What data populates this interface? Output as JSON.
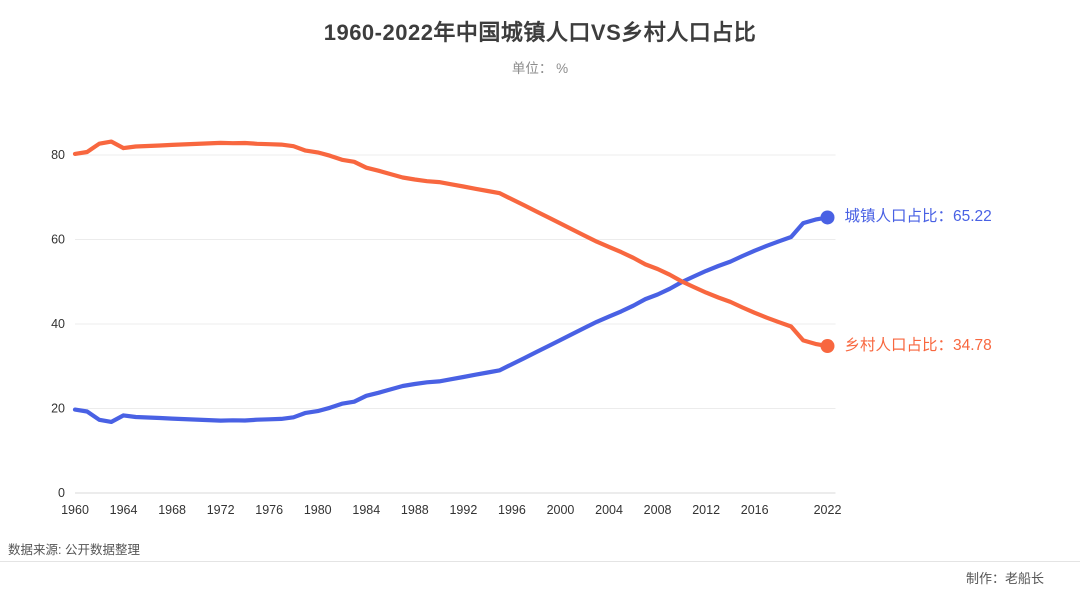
{
  "footer": {
    "source": "数据来源: 公开数据整理",
    "credit": "制作：老船长"
  },
  "chart_data": {
    "type": "line",
    "title": "1960-2022年中国城镇人口VS乡村人口占比",
    "subtitle": "单位： %",
    "xlabel": "",
    "ylabel": "",
    "ylim": [
      0,
      80
    ],
    "yticks": [
      0,
      20,
      40,
      60,
      80
    ],
    "xticks": [
      1960,
      1964,
      1968,
      1972,
      1976,
      1980,
      1984,
      1988,
      1992,
      1996,
      2000,
      2004,
      2008,
      2012,
      2016,
      2022
    ],
    "grid": "horizontal",
    "legend_position": "line-end-labels",
    "x": [
      1960,
      1961,
      1962,
      1963,
      1964,
      1965,
      1966,
      1967,
      1968,
      1969,
      1970,
      1971,
      1972,
      1973,
      1974,
      1975,
      1976,
      1977,
      1978,
      1979,
      1980,
      1981,
      1982,
      1983,
      1984,
      1985,
      1986,
      1987,
      1988,
      1989,
      1990,
      1991,
      1992,
      1993,
      1994,
      1995,
      1996,
      1997,
      1998,
      1999,
      2000,
      2001,
      2002,
      2003,
      2004,
      2005,
      2006,
      2007,
      2008,
      2009,
      2010,
      2011,
      2012,
      2013,
      2014,
      2015,
      2016,
      2017,
      2018,
      2019,
      2020,
      2021,
      2022
    ],
    "series": [
      {
        "name": "城镇人口占比",
        "color": "#4961e4",
        "end_value": 65.22,
        "end_label": "城镇人口占比：65.22",
        "values": [
          19.75,
          19.29,
          17.33,
          16.84,
          18.37,
          17.98,
          17.86,
          17.74,
          17.62,
          17.5,
          17.38,
          17.26,
          17.13,
          17.2,
          17.16,
          17.34,
          17.44,
          17.55,
          17.92,
          18.96,
          19.39,
          20.16,
          21.13,
          21.62,
          23.01,
          23.71,
          24.52,
          25.32,
          25.81,
          26.21,
          26.41,
          26.94,
          27.46,
          27.99,
          28.51,
          29.04,
          30.48,
          31.91,
          33.35,
          34.78,
          36.22,
          37.66,
          39.09,
          40.53,
          41.76,
          42.99,
          44.34,
          45.89,
          46.99,
          48.34,
          49.95,
          51.27,
          52.57,
          53.73,
          54.77,
          56.1,
          57.35,
          58.52,
          59.58,
          60.6,
          63.89,
          64.72,
          65.22
        ]
      },
      {
        "name": "乡村人口占比",
        "color": "#f8673f",
        "end_value": 34.78,
        "end_label": "乡村人口占比：34.78",
        "values": [
          80.25,
          80.71,
          82.67,
          83.16,
          81.63,
          82.02,
          82.14,
          82.26,
          82.38,
          82.5,
          82.62,
          82.74,
          82.87,
          82.8,
          82.84,
          82.66,
          82.56,
          82.45,
          82.08,
          81.04,
          80.61,
          79.84,
          78.87,
          78.38,
          76.99,
          76.29,
          75.48,
          74.68,
          74.19,
          73.79,
          73.59,
          73.06,
          72.54,
          72.01,
          71.49,
          70.96,
          69.52,
          68.09,
          66.65,
          65.22,
          63.78,
          62.34,
          60.91,
          59.47,
          58.24,
          57.01,
          55.66,
          54.11,
          53.01,
          51.66,
          50.05,
          48.73,
          47.43,
          46.27,
          45.23,
          43.9,
          42.65,
          41.48,
          40.42,
          39.4,
          36.11,
          35.28,
          34.78
        ]
      }
    ]
  }
}
